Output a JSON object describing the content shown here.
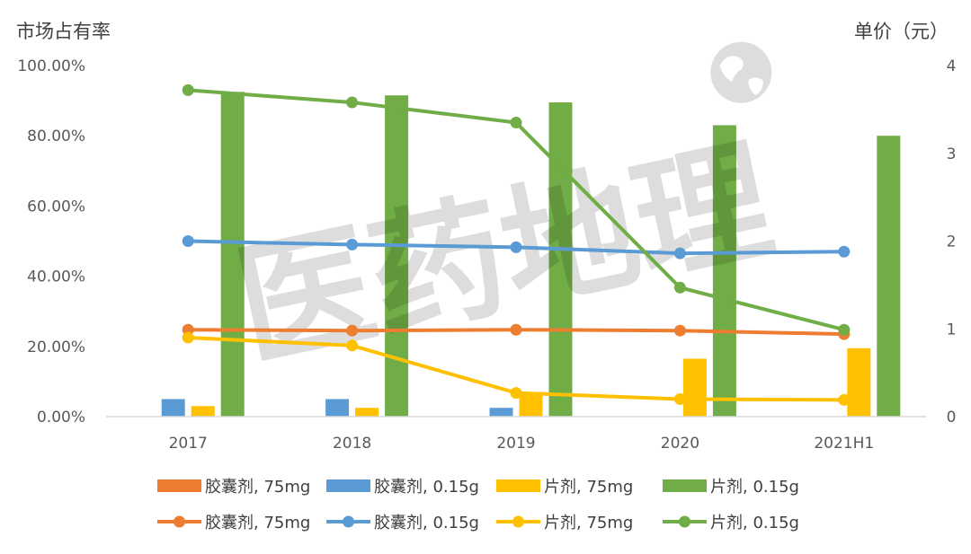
{
  "chart_data": {
    "type": "bar",
    "title": "",
    "ylabel_left": "市场占有率",
    "ylabel_right": "单价（元）",
    "categories": [
      "2017",
      "2018",
      "2019",
      "2020",
      "2021H1"
    ],
    "y_left": {
      "min": 0,
      "max": 1.0,
      "ticks": [
        "0.00%",
        "20.00%",
        "40.00%",
        "60.00%",
        "80.00%",
        "100.00%"
      ]
    },
    "y_right": {
      "min": 0,
      "max": 4,
      "ticks": [
        "0",
        "1",
        "2",
        "3",
        "4"
      ]
    },
    "grid": false,
    "legend_position": "bottom",
    "bar_series": [
      {
        "name": "胶囊剂, 75mg",
        "color": "#ED7D31",
        "values": [
          0,
          0,
          0,
          0,
          0
        ]
      },
      {
        "name": "胶囊剂, 0.15g",
        "color": "#5B9BD5",
        "values": [
          0.05,
          0.05,
          0.025,
          0,
          0
        ]
      },
      {
        "name": "片剂, 75mg",
        "color": "#FFC000",
        "values": [
          0.03,
          0.025,
          0.07,
          0.165,
          0.195
        ]
      },
      {
        "name": "片剂, 0.15g",
        "color": "#70AD47",
        "values": [
          0.925,
          0.915,
          0.895,
          0.83,
          0.8
        ]
      }
    ],
    "line_series": [
      {
        "name": "胶囊剂, 75mg",
        "color": "#ED7D31",
        "values": [
          0.99,
          0.98,
          0.99,
          0.98,
          0.94
        ]
      },
      {
        "name": "胶囊剂, 0.15g",
        "color": "#5B9BD5",
        "values": [
          2.0,
          1.96,
          1.93,
          1.86,
          1.88
        ]
      },
      {
        "name": "片剂, 75mg",
        "color": "#FFC000",
        "values": [
          0.9,
          0.81,
          0.27,
          0.2,
          0.19
        ]
      },
      {
        "name": "片剂, 0.15g",
        "color": "#70AD47",
        "values": [
          3.72,
          3.58,
          3.35,
          1.47,
          0.99
        ]
      }
    ]
  },
  "watermark": {
    "text": "医药地理",
    "icon": "globe-icon"
  }
}
